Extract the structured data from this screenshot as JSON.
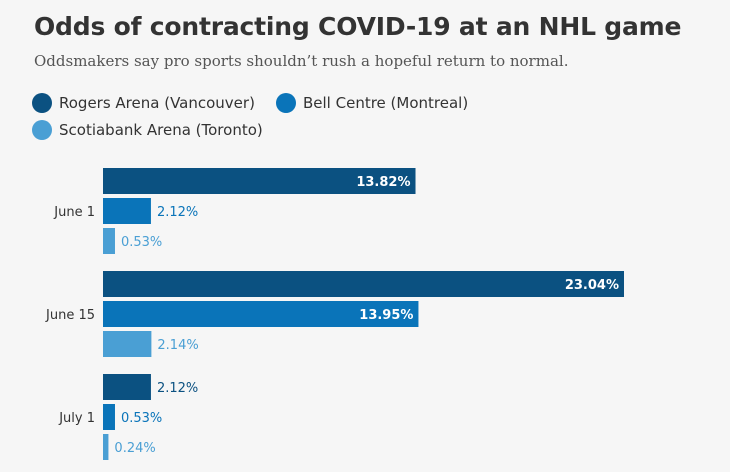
{
  "chart_data": {
    "type": "bar",
    "orientation": "horizontal",
    "title": "Odds of contracting COVID-19 at an NHL game",
    "subtitle": "Oddsmakers say pro sports shouldn’t rush a hopeful return to normal.",
    "categories": [
      "June 1",
      "June 15",
      "July 1"
    ],
    "series": [
      {
        "name": "Rogers Arena (Vancouver)",
        "color": "#0b5181",
        "values": [
          13.82,
          23.04,
          2.12
        ],
        "labels": [
          "13.82%",
          "23.04%",
          "2.12%"
        ]
      },
      {
        "name": "Bell Centre (Montreal)",
        "color": "#0a74b9",
        "values": [
          2.12,
          13.95,
          0.53
        ],
        "labels": [
          "2.12%",
          "13.95%",
          "0.53%"
        ]
      },
      {
        "name": "Scotiabank Arena (Toronto)",
        "color": "#4a9fd4",
        "values": [
          0.53,
          2.14,
          0.24
        ],
        "labels": [
          "0.53%",
          "2.14%",
          "0.24%"
        ]
      }
    ],
    "xlim": [
      0,
      23.04
    ],
    "legend_position": "top-left",
    "grid": false
  }
}
